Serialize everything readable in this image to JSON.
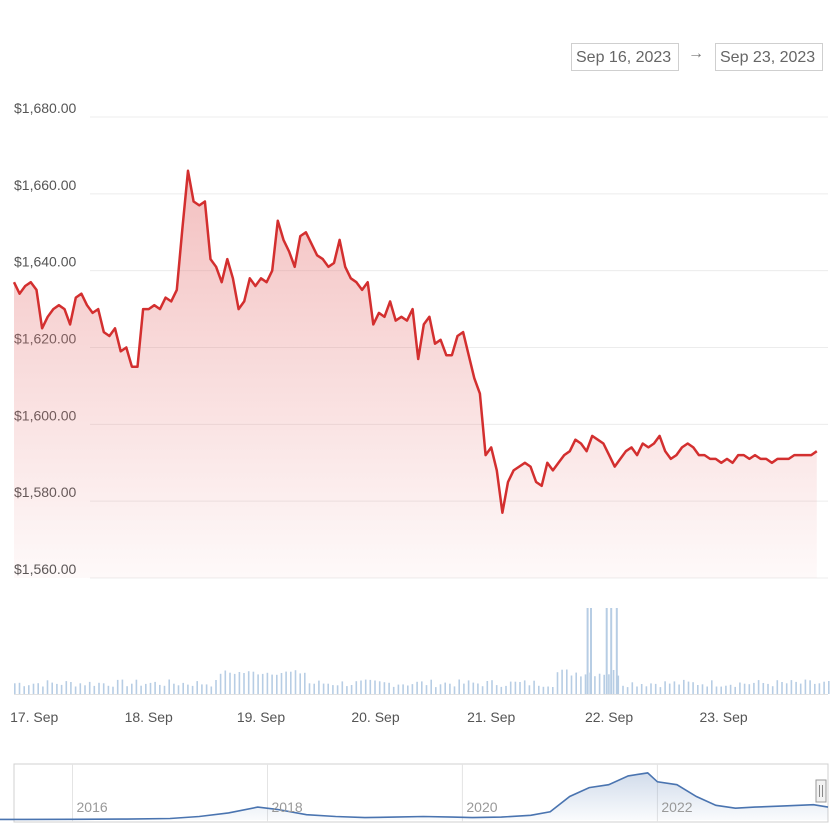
{
  "date_range": {
    "start": "Sep 16, 2023",
    "arrow": "→",
    "end": "Sep 23, 2023"
  },
  "colors": {
    "line": "#d32f2f",
    "area": "#e57373",
    "volume": "#b7cde4",
    "navigator_line": "#4a74b0",
    "grid": "#ececec"
  },
  "chart_data": [
    {
      "type": "area",
      "title": "",
      "series": [
        {
          "x": [
            0,
            0.05,
            0.1,
            0.15,
            0.2,
            0.25,
            0.3,
            0.35,
            0.4,
            0.45,
            0.5,
            0.55,
            0.6,
            0.65,
            0.7,
            0.75,
            0.8,
            0.85,
            0.9,
            0.95,
            1.0,
            1.05,
            1.1,
            1.15,
            1.2,
            1.25,
            1.3,
            1.35,
            1.4,
            1.45,
            1.5,
            1.55,
            1.6,
            1.65,
            1.7,
            1.75,
            1.8,
            1.85,
            1.9,
            1.95,
            2.0,
            2.05,
            2.1,
            2.15,
            2.2,
            2.25,
            2.3,
            2.35,
            2.4,
            2.45,
            2.5,
            2.55,
            2.6,
            2.65,
            2.7,
            2.75,
            2.8,
            2.85,
            2.9,
            2.95,
            3.0,
            3.05,
            3.1,
            3.15,
            3.2,
            3.25,
            3.3,
            3.35,
            3.4,
            3.45,
            3.5,
            3.55,
            3.6,
            3.65,
            3.7,
            3.75,
            3.8,
            3.85,
            3.9,
            3.95,
            4.0,
            4.05,
            4.1,
            4.15,
            4.2,
            4.25,
            4.3,
            4.35,
            4.4,
            4.45,
            4.5,
            4.55,
            4.6,
            4.65,
            4.7,
            4.75,
            4.8,
            4.85,
            4.9,
            4.95,
            5.0,
            5.05,
            5.1,
            5.15,
            5.2,
            5.25,
            5.3,
            5.35,
            5.4,
            5.45,
            5.5,
            5.55,
            5.6,
            5.65,
            5.7,
            5.75,
            5.8,
            5.85,
            5.9,
            5.95,
            6.0,
            6.05,
            6.1,
            6.15,
            6.2,
            6.25,
            6.3,
            6.35,
            6.4,
            6.45,
            6.5,
            6.55,
            6.6,
            6.65,
            6.7,
            6.75,
            6.8,
            6.85,
            6.9,
            6.95,
            7.0,
            7.05,
            7.1,
            7.15
          ],
          "y": [
            1637,
            1634,
            1636,
            1637,
            1635,
            1625,
            1628,
            1630,
            1631,
            1630,
            1626,
            1633,
            1634,
            1631,
            1629,
            1630,
            1624,
            1623,
            1625,
            1619,
            1620,
            1615,
            1615,
            1630,
            1630,
            1631,
            1630,
            1633,
            1632,
            1635,
            1651,
            1666,
            1658,
            1657,
            1658,
            1643,
            1641,
            1637,
            1643,
            1638,
            1630,
            1632,
            1638,
            1636,
            1638,
            1637,
            1640,
            1653,
            1648,
            1645,
            1641,
            1649,
            1650,
            1647,
            1644,
            1643,
            1641,
            1642,
            1648,
            1641,
            1638,
            1637,
            1635,
            1637,
            1626,
            1629,
            1628,
            1632,
            1627,
            1628,
            1627,
            1630,
            1617,
            1626,
            1628,
            1621,
            1622,
            1618,
            1618,
            1623,
            1624,
            1618,
            1612,
            1608,
            1592,
            1594,
            1588,
            1577,
            1585,
            1588,
            1589,
            1590,
            1589,
            1585,
            1584,
            1590,
            1588,
            1590,
            1592,
            1593,
            1596,
            1595,
            1593,
            1597,
            1596,
            1595,
            1592,
            1589,
            1591,
            1593,
            1594,
            1592,
            1595,
            1594,
            1595,
            1597,
            1593,
            1591,
            1592,
            1594,
            1595,
            1594,
            1592,
            1592,
            1591,
            1591,
            1590,
            1591,
            1590,
            1592,
            1592,
            1591,
            1592,
            1591,
            1591,
            1590,
            1591,
            1591,
            1591,
            1592,
            1592,
            1592,
            1592,
            1593
          ]
        }
      ],
      "xlim": [
        0,
        7.25
      ],
      "ylim": [
        1560,
        1680
      ],
      "yticks": [
        1680,
        1660,
        1640,
        1620,
        1600,
        1580,
        1560
      ],
      "ytick_labels": [
        "$1,680.00",
        "$1,660.00",
        "$1,640.00",
        "$1,620.00",
        "$1,600.00",
        "$1,580.00",
        "$1,560.00"
      ],
      "grid": true
    },
    {
      "type": "bar",
      "title": "",
      "x_start": 0,
      "x_end": 7.25,
      "spikes": [
        {
          "x": 5.1,
          "value": 1.0
        },
        {
          "x": 5.13,
          "value": 1.0
        },
        {
          "x": 5.27,
          "value": 1.0
        },
        {
          "x": 5.31,
          "value": 1.0
        },
        {
          "x": 5.36,
          "value": 1.0
        }
      ],
      "x_tick_positions": [
        0.18,
        1.2,
        2.2,
        3.22,
        4.25,
        5.3,
        6.32
      ],
      "x_tick_labels": [
        "17. Sep",
        "18. Sep",
        "19. Sep",
        "20. Sep",
        "21. Sep",
        "22. Sep",
        "23. Sep"
      ]
    },
    {
      "type": "line",
      "title": "",
      "x": [
        2015,
        2015.5,
        2016,
        2016.5,
        2017,
        2017.3,
        2017.6,
        2017.9,
        2018.1,
        2018.4,
        2018.7,
        2019,
        2019.3,
        2019.6,
        2019.9,
        2020.1,
        2020.4,
        2020.7,
        2020.9,
        2021.1,
        2021.3,
        2021.5,
        2021.7,
        2021.9,
        2022,
        2022.2,
        2022.4,
        2022.6,
        2022.8,
        2023,
        2023.3,
        2023.6,
        2023.75
      ],
      "y": [
        1,
        1,
        1.2,
        1.5,
        2.5,
        6,
        12,
        22,
        18,
        9,
        6,
        4,
        5,
        6,
        5,
        4,
        5,
        8,
        14,
        40,
        55,
        60,
        75,
        80,
        65,
        60,
        40,
        25,
        20,
        22,
        24,
        26,
        22
      ],
      "x_tick_labels": [
        "2016",
        "2018",
        "2020",
        "2022"
      ],
      "x_ticks": [
        2016,
        2018,
        2020,
        2022
      ],
      "xlim": [
        2015.4,
        2023.75
      ]
    }
  ]
}
